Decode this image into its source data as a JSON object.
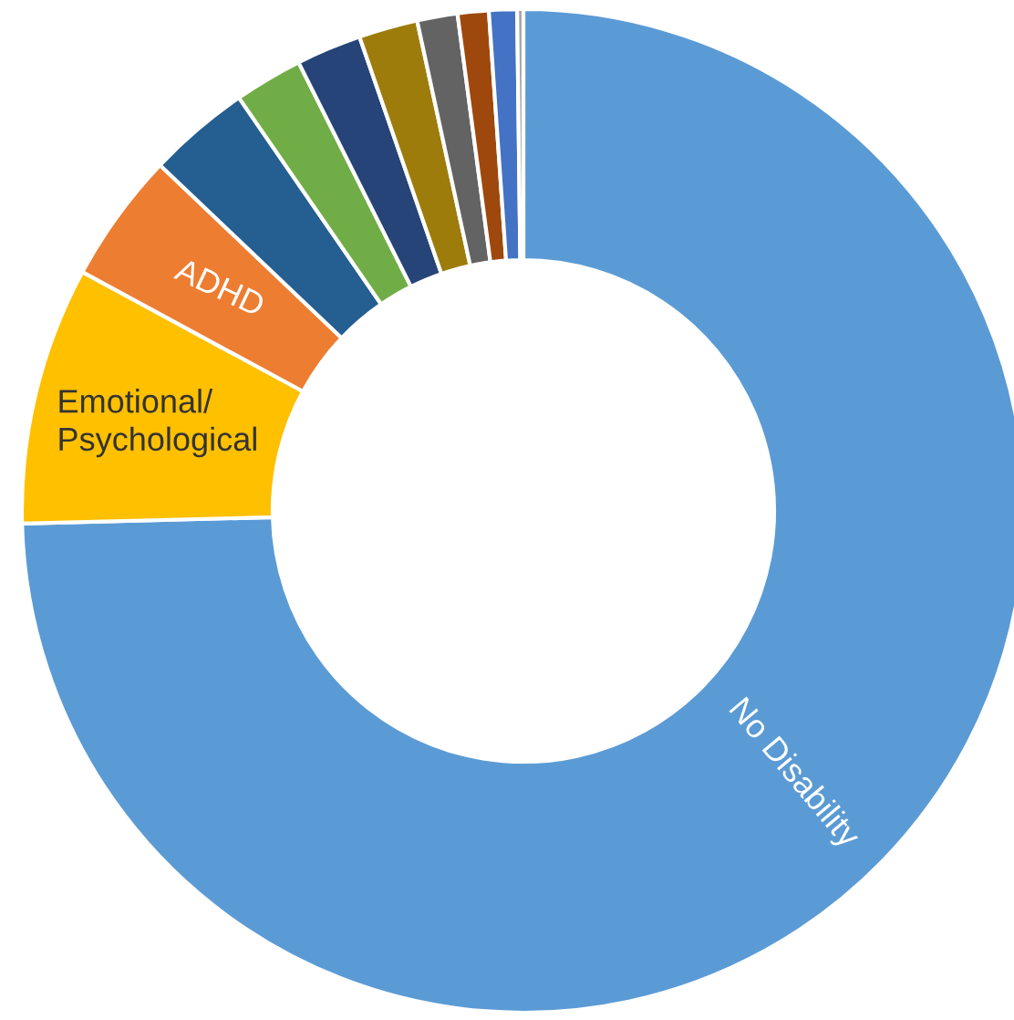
{
  "chart_data": {
    "type": "donut",
    "categories": [
      "No Disability",
      "Emotional/\nPsychological",
      "ADHD",
      null,
      null,
      null,
      null,
      null,
      null,
      null,
      null
    ],
    "values": [
      74.6,
      8.3,
      4.2,
      3.3,
      2.2,
      2.1,
      1.9,
      1.3,
      1.0,
      0.9,
      0.2
    ],
    "colors": [
      "#5b9bd5",
      "#ffc000",
      "#ed7d31",
      "#255e91",
      "#70ad47",
      "#264478",
      "#9e7c0c",
      "#636363",
      "#9e480e",
      "#4472c4",
      "#a5a5a5"
    ],
    "legend": false
  }
}
